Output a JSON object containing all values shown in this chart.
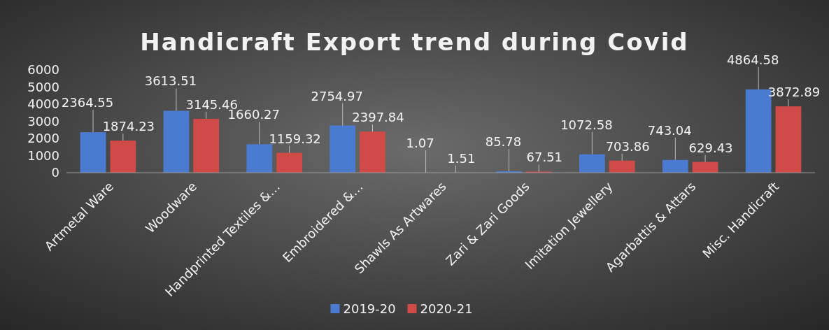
{
  "chart_data": {
    "type": "bar",
    "title": "Handicraft Export trend during Covid",
    "categories": [
      "Artmetal Ware",
      "Woodware",
      "Handprinted Textiles &…",
      "Embroidered &…",
      "Shawls As Artwares",
      "Zari & Zari Goods",
      "Imitation Jewellery",
      "Agarbattis & Attars",
      "Misc. Handicraft"
    ],
    "series": [
      {
        "name": "2019-20",
        "color": "#4a7bd0",
        "values": [
          2364.55,
          3613.51,
          1660.27,
          2754.97,
          1.07,
          85.78,
          1072.58,
          743.04,
          4864.58
        ]
      },
      {
        "name": "2020-21",
        "color": "#d04a47",
        "values": [
          1874.23,
          3145.46,
          1159.32,
          2397.84,
          1.51,
          67.51,
          703.86,
          629.43,
          3872.89
        ]
      }
    ],
    "ylim": [
      0,
      6000
    ],
    "yticks": [
      0,
      1000,
      2000,
      3000,
      4000,
      5000,
      6000
    ],
    "grid": false,
    "data_labels": true,
    "legend": "bottom"
  }
}
